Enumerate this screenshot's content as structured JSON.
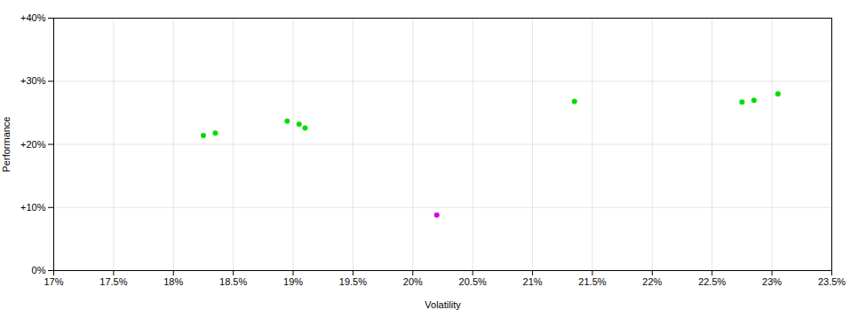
{
  "chart_data": {
    "type": "scatter",
    "xlabel": "Volatility",
    "ylabel": "Performance",
    "xlim": [
      0.17,
      0.235
    ],
    "ylim": [
      0.0,
      0.4
    ],
    "xticks": [
      {
        "value": 0.17,
        "label": "17%"
      },
      {
        "value": 0.175,
        "label": "17.5%"
      },
      {
        "value": 0.18,
        "label": "18%"
      },
      {
        "value": 0.185,
        "label": "18.5%"
      },
      {
        "value": 0.19,
        "label": "19%"
      },
      {
        "value": 0.195,
        "label": "19.5%"
      },
      {
        "value": 0.2,
        "label": "20%"
      },
      {
        "value": 0.205,
        "label": "20.5%"
      },
      {
        "value": 0.21,
        "label": "21%"
      },
      {
        "value": 0.215,
        "label": "21.5%"
      },
      {
        "value": 0.22,
        "label": "22%"
      },
      {
        "value": 0.225,
        "label": "22.5%"
      },
      {
        "value": 0.23,
        "label": "23%"
      },
      {
        "value": 0.235,
        "label": "23.5%"
      }
    ],
    "yticks": [
      {
        "value": 0.0,
        "label": "0%"
      },
      {
        "value": 0.1,
        "label": "+10%"
      },
      {
        "value": 0.2,
        "label": "+20%"
      },
      {
        "value": 0.3,
        "label": "+30%"
      },
      {
        "value": 0.4,
        "label": "+40%"
      }
    ],
    "grid": true,
    "series": [
      {
        "color": "#00dd00",
        "x": [
          0.1825,
          0.1835,
          0.1895,
          0.1905,
          0.191,
          0.2135,
          0.2275,
          0.2285,
          0.2305
        ],
        "values": [
          0.214,
          0.218,
          0.237,
          0.232,
          0.226,
          0.268,
          0.267,
          0.27,
          0.28
        ]
      },
      {
        "color": "#dd00dd",
        "x": [
          0.202
        ],
        "values": [
          0.088
        ]
      }
    ]
  }
}
